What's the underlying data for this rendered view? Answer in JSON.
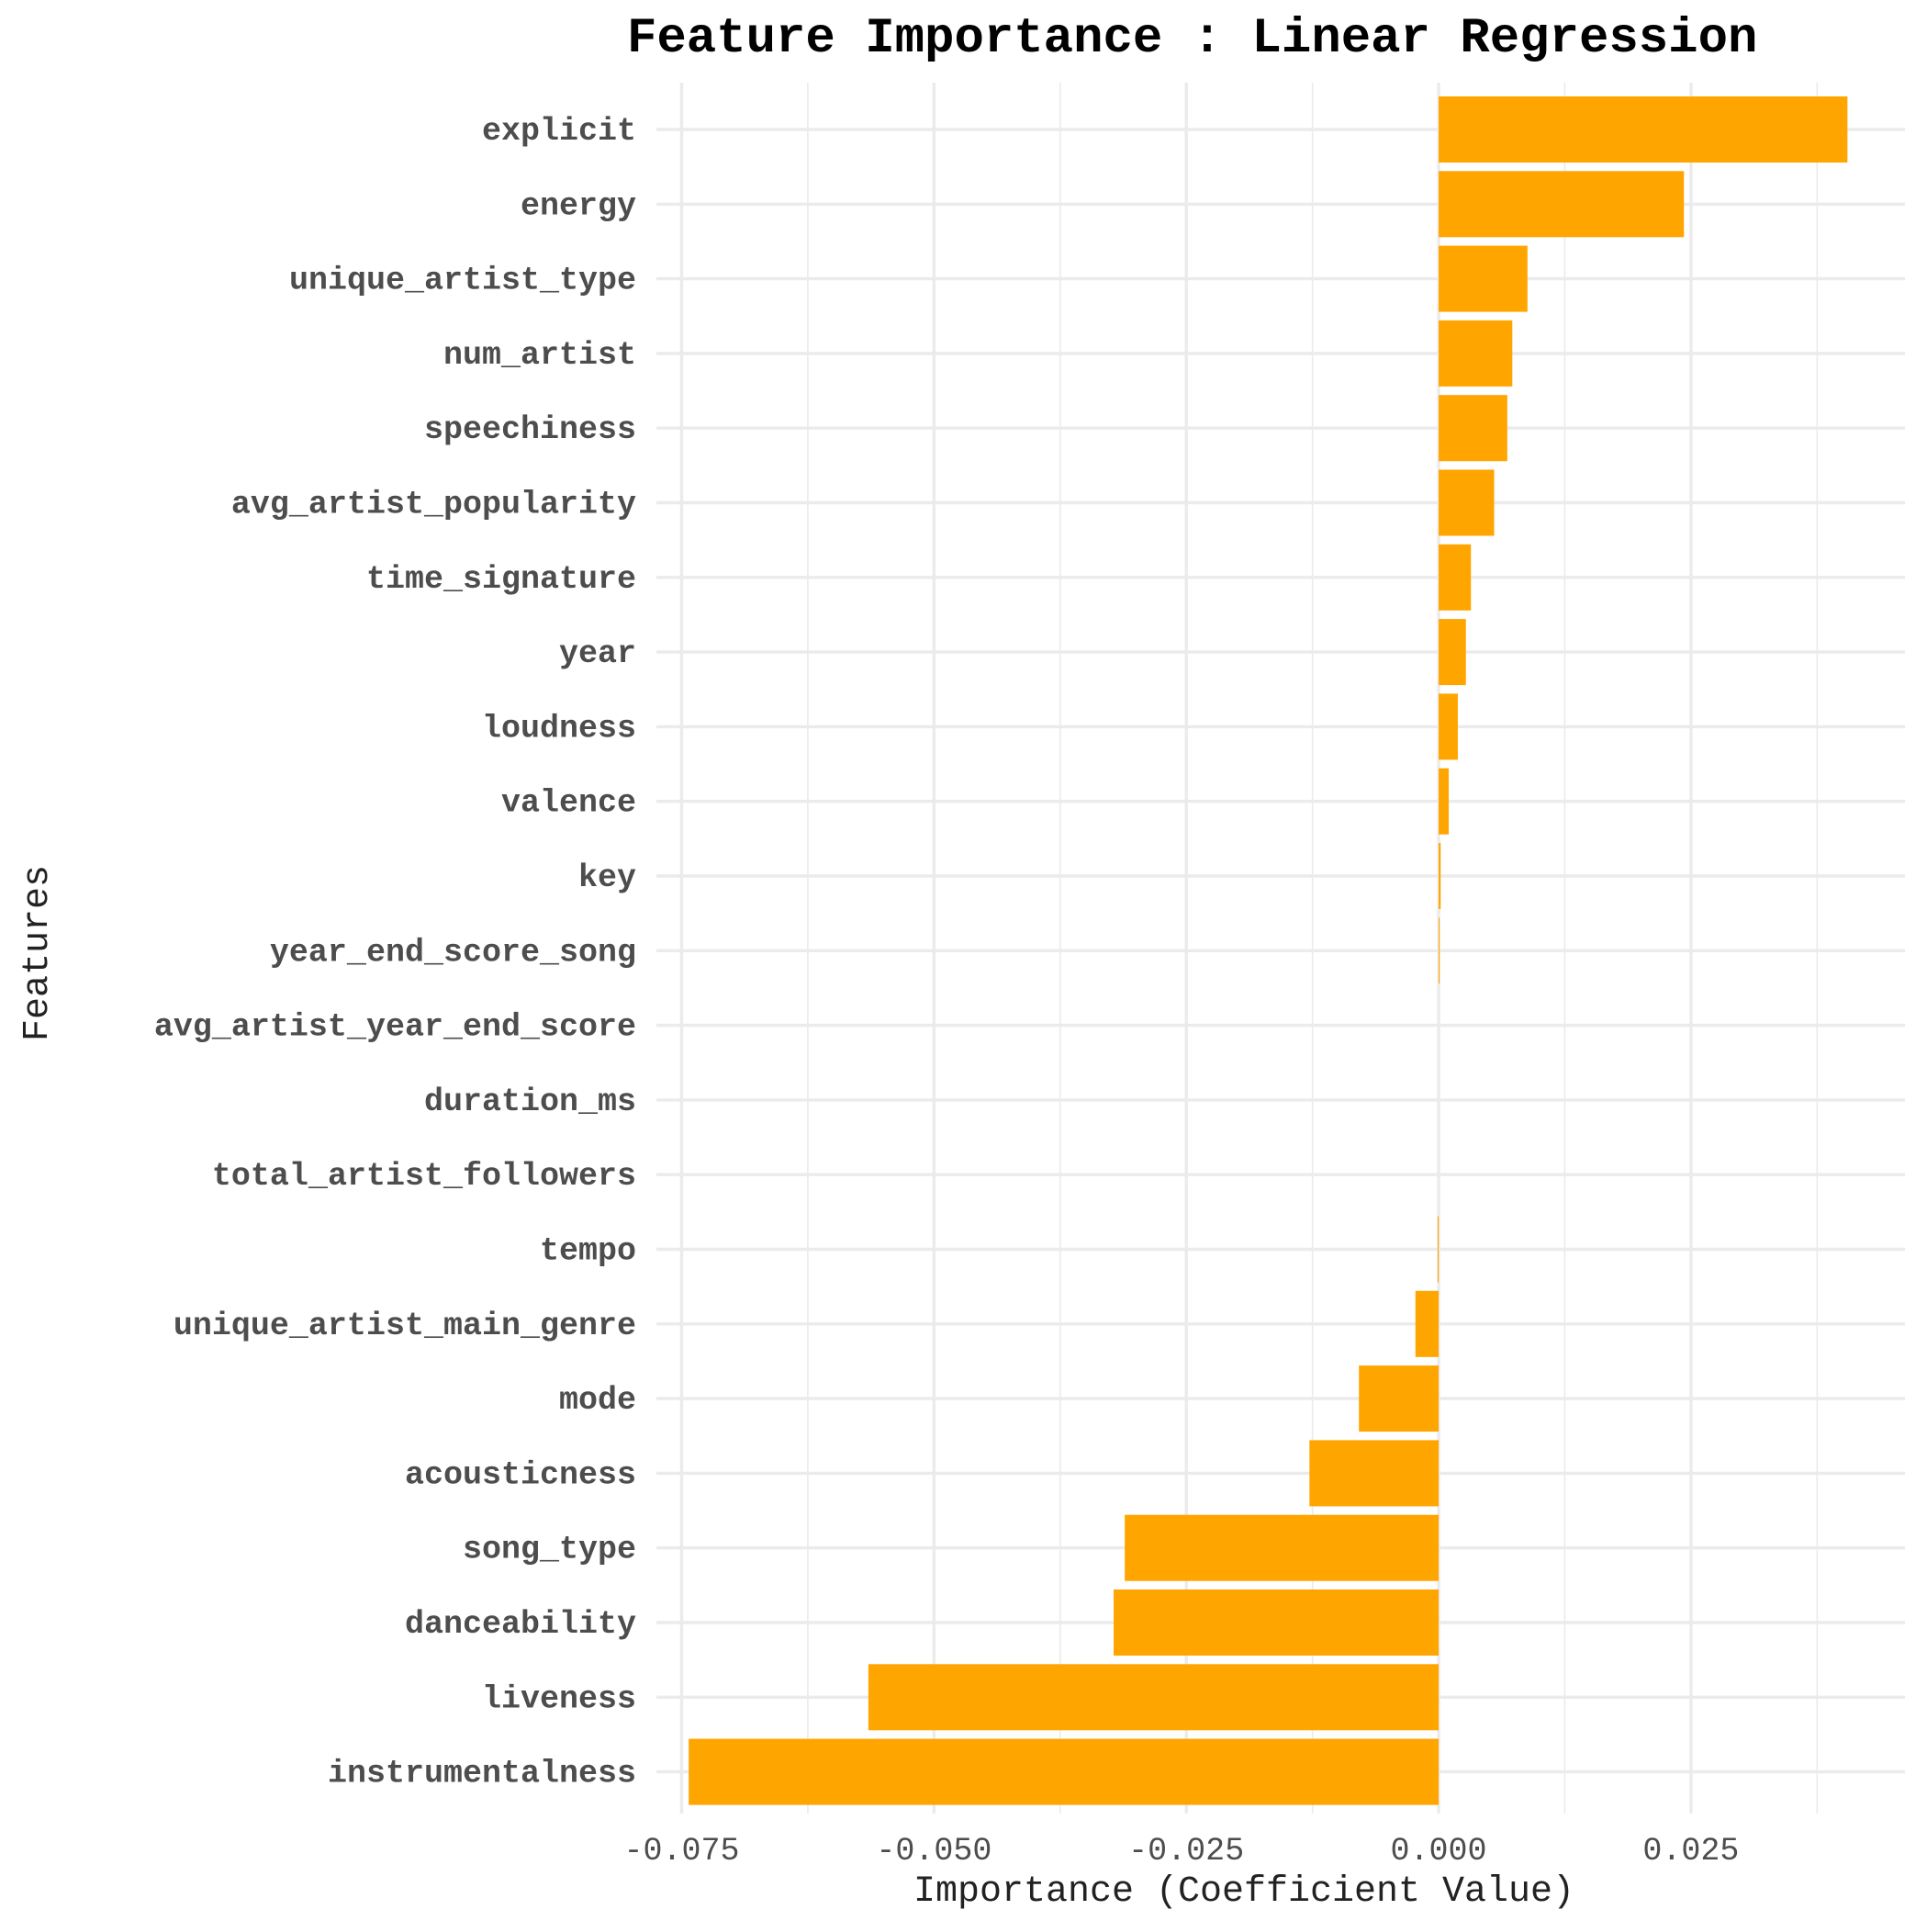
{
  "chart_data": {
    "type": "bar",
    "orientation": "horizontal",
    "title": "Feature Importance : Linear Regression",
    "xlabel": "Importance (Coefficient Value)",
    "ylabel": "Features",
    "xlim": [
      -0.0775,
      0.0462
    ],
    "xticks": [
      -0.075,
      -0.05,
      -0.025,
      0.0,
      0.025
    ],
    "xtick_labels": [
      "-0.075",
      "-0.050",
      "-0.025",
      "0.000",
      "0.025"
    ],
    "grid": true,
    "categories": [
      "explicit",
      "energy",
      "unique_artist_type",
      "num_artist",
      "speechiness",
      "avg_artist_popularity",
      "time_signature",
      "year",
      "loudness",
      "valence",
      "key",
      "year_end_score_song",
      "avg_artist_year_end_score",
      "duration_ms",
      "total_artist_followers",
      "tempo",
      "unique_artist_main_genre",
      "mode",
      "acousticness",
      "song_type",
      "danceability",
      "liveness",
      "instrumentalness"
    ],
    "values": [
      0.0405,
      0.0243,
      0.0088,
      0.0073,
      0.0068,
      0.0055,
      0.0032,
      0.0027,
      0.0019,
      0.001,
      0.0002,
      0.0001,
      0.0,
      0.0,
      0.0,
      -0.0001,
      -0.0023,
      -0.0079,
      -0.0128,
      -0.0311,
      -0.0322,
      -0.0565,
      -0.0743
    ],
    "bar_color": "#FFA500",
    "grid_color": "#EBEBEB",
    "background": "#FFFFFF"
  }
}
